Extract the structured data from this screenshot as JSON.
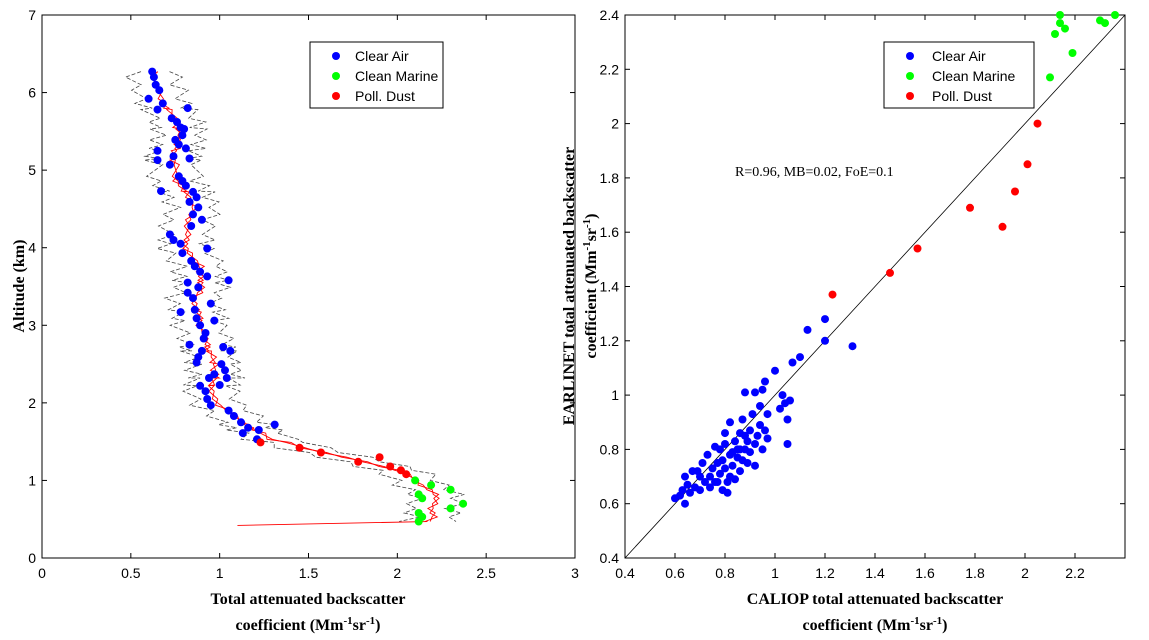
{
  "chart_data": [
    {
      "type": "scatter",
      "id": "profile",
      "xlabel_line1": "Total attenuated backscatter",
      "xlabel_line2_prefix": "coefficient (Mm",
      "ylabel": "Altitude (km)",
      "xlim": [
        0,
        3
      ],
      "ylim": [
        0,
        7
      ],
      "xticks": [
        "0",
        "0.5",
        "1",
        "1.5",
        "2",
        "2.5",
        "3"
      ],
      "yticks": [
        "0",
        "1",
        "2",
        "3",
        "4",
        "5",
        "6",
        "7"
      ],
      "grid": false,
      "legend_position": "top-right",
      "series": [
        {
          "name": "Clear Air",
          "color": "#0000ff",
          "points": [
            [
              0.62,
              6.27
            ],
            [
              0.63,
              6.2
            ],
            [
              0.64,
              6.1
            ],
            [
              0.66,
              6.03
            ],
            [
              0.6,
              5.92
            ],
            [
              0.68,
              5.86
            ],
            [
              0.65,
              5.78
            ],
            [
              0.82,
              5.8
            ],
            [
              0.73,
              5.67
            ],
            [
              0.76,
              5.62
            ],
            [
              0.78,
              5.55
            ],
            [
              0.8,
              5.53
            ],
            [
              0.79,
              5.45
            ],
            [
              0.75,
              5.39
            ],
            [
              0.77,
              5.33
            ],
            [
              0.81,
              5.28
            ],
            [
              0.65,
              5.25
            ],
            [
              0.74,
              5.18
            ],
            [
              0.65,
              5.13
            ],
            [
              0.83,
              5.15
            ],
            [
              0.72,
              5.07
            ],
            [
              0.77,
              4.92
            ],
            [
              0.79,
              4.86
            ],
            [
              0.81,
              4.8
            ],
            [
              0.85,
              4.72
            ],
            [
              0.67,
              4.73
            ],
            [
              0.87,
              4.65
            ],
            [
              0.83,
              4.59
            ],
            [
              0.88,
              4.52
            ],
            [
              0.85,
              4.43
            ],
            [
              0.9,
              4.36
            ],
            [
              0.84,
              4.28
            ],
            [
              0.72,
              4.17
            ],
            [
              0.74,
              4.1
            ],
            [
              0.78,
              4.05
            ],
            [
              0.93,
              3.99
            ],
            [
              0.79,
              3.93
            ],
            [
              0.84,
              3.83
            ],
            [
              0.86,
              3.76
            ],
            [
              0.89,
              3.69
            ],
            [
              0.93,
              3.63
            ],
            [
              1.05,
              3.58
            ],
            [
              0.82,
              3.55
            ],
            [
              0.88,
              3.49
            ],
            [
              0.82,
              3.42
            ],
            [
              0.85,
              3.35
            ],
            [
              0.95,
              3.28
            ],
            [
              0.86,
              3.2
            ],
            [
              0.78,
              3.17
            ],
            [
              0.87,
              3.09
            ],
            [
              0.97,
              3.06
            ],
            [
              0.89,
              3.0
            ],
            [
              0.92,
              2.9
            ],
            [
              0.91,
              2.83
            ],
            [
              0.83,
              2.75
            ],
            [
              1.02,
              2.72
            ],
            [
              0.9,
              2.67
            ],
            [
              1.06,
              2.67
            ],
            [
              0.88,
              2.59
            ],
            [
              0.87,
              2.52
            ],
            [
              1.01,
              2.5
            ],
            [
              1.03,
              2.42
            ],
            [
              0.97,
              2.37
            ],
            [
              1.04,
              2.32
            ],
            [
              0.94,
              2.32
            ],
            [
              0.89,
              2.22
            ],
            [
              1.0,
              2.23
            ],
            [
              0.92,
              2.15
            ],
            [
              0.93,
              2.05
            ],
            [
              0.95,
              1.97
            ],
            [
              1.05,
              1.9
            ],
            [
              1.08,
              1.83
            ],
            [
              1.12,
              1.75
            ],
            [
              1.31,
              1.72
            ],
            [
              1.16,
              1.68
            ],
            [
              1.22,
              1.65
            ],
            [
              1.13,
              1.61
            ],
            [
              1.21,
              1.53
            ]
          ]
        },
        {
          "name": "Clean Marine",
          "color": "#00ff00",
          "points": [
            [
              2.1,
              1.0
            ],
            [
              2.19,
              0.94
            ],
            [
              2.3,
              0.88
            ],
            [
              2.12,
              0.82
            ],
            [
              2.14,
              0.77
            ],
            [
              2.37,
              0.7
            ],
            [
              2.3,
              0.64
            ],
            [
              2.12,
              0.58
            ],
            [
              2.14,
              0.53
            ],
            [
              2.12,
              0.47
            ]
          ]
        },
        {
          "name": "Poll. Dust",
          "color": "#ff0000",
          "points": [
            [
              1.23,
              1.49
            ],
            [
              1.45,
              1.42
            ],
            [
              1.57,
              1.36
            ],
            [
              1.9,
              1.3
            ],
            [
              1.78,
              1.24
            ],
            [
              1.96,
              1.18
            ],
            [
              2.02,
              1.13
            ],
            [
              2.05,
              1.08
            ]
          ]
        }
      ]
    },
    {
      "type": "scatter",
      "id": "comparison",
      "xlabel_line1": "CALIOP total attenuated backscatter",
      "xlabel_line2_prefix": "coefficient (Mm",
      "ylabel_line1": "EARLINET total attenuated backscatter",
      "ylabel_line2_prefix": "coefficient (Mm",
      "xlim": [
        0.4,
        2.4
      ],
      "ylim": [
        0.4,
        2.4
      ],
      "xticks": [
        "0.4",
        "0.6",
        "0.8",
        "1",
        "1.2",
        "1.4",
        "1.6",
        "1.8",
        "2",
        "2.2"
      ],
      "yticks": [
        "0.4",
        "0.6",
        "0.8",
        "1",
        "1.2",
        "1.4",
        "1.6",
        "1.8",
        "2",
        "2.2",
        "2.4"
      ],
      "grid": false,
      "legend_position": "top-right",
      "annotation": "R=0.96, MB=0.02, FoE=0.1",
      "reference_line": [
        [
          0.4,
          0.4
        ],
        [
          2.4,
          2.4
        ]
      ],
      "series": [
        {
          "name": "Clear Air",
          "color": "#0000ff",
          "points": [
            [
              0.6,
              0.62
            ],
            [
              0.62,
              0.63
            ],
            [
              0.64,
              0.6
            ],
            [
              0.63,
              0.65
            ],
            [
              0.65,
              0.67
            ],
            [
              0.66,
              0.64
            ],
            [
              0.64,
              0.7
            ],
            [
              0.68,
              0.66
            ],
            [
              0.7,
              0.7
            ],
            [
              0.67,
              0.72
            ],
            [
              0.72,
              0.68
            ],
            [
              0.71,
              0.75
            ],
            [
              0.74,
              0.7
            ],
            [
              0.73,
              0.78
            ],
            [
              0.75,
              0.73
            ],
            [
              0.76,
              0.68
            ],
            [
              0.77,
              0.75
            ],
            [
              0.78,
              0.8
            ],
            [
              0.78,
              0.71
            ],
            [
              0.79,
              0.76
            ],
            [
              0.8,
              0.73
            ],
            [
              0.8,
              0.82
            ],
            [
              0.81,
              0.64
            ],
            [
              0.82,
              0.7
            ],
            [
              0.82,
              0.78
            ],
            [
              0.83,
              0.74
            ],
            [
              0.84,
              0.83
            ],
            [
              0.84,
              0.69
            ],
            [
              0.85,
              0.77
            ],
            [
              0.85,
              0.8
            ],
            [
              0.86,
              0.72
            ],
            [
              0.86,
              0.86
            ],
            [
              0.87,
              0.76
            ],
            [
              0.87,
              0.91
            ],
            [
              0.88,
              0.8
            ],
            [
              0.88,
              0.85
            ],
            [
              0.89,
              0.75
            ],
            [
              0.89,
              0.83
            ],
            [
              0.9,
              0.87
            ],
            [
              0.9,
              0.79
            ],
            [
              0.91,
              0.93
            ],
            [
              0.92,
              0.82
            ],
            [
              0.92,
              0.74
            ],
            [
              0.93,
              0.85
            ],
            [
              0.94,
              0.89
            ],
            [
              0.94,
              0.96
            ],
            [
              0.95,
              0.8
            ],
            [
              0.95,
              1.02
            ],
            [
              0.96,
              1.05
            ],
            [
              0.96,
              0.87
            ],
            [
              0.97,
              0.84
            ],
            [
              0.97,
              0.93
            ],
            [
              0.88,
              1.01
            ],
            [
              0.92,
              1.01
            ],
            [
              1.0,
              1.09
            ],
            [
              1.02,
              0.95
            ],
            [
              1.03,
              1.0
            ],
            [
              1.04,
              0.97
            ],
            [
              1.05,
              0.82
            ],
            [
              1.05,
              0.91
            ],
            [
              1.06,
              0.98
            ],
            [
              1.07,
              1.12
            ],
            [
              1.1,
              1.14
            ],
            [
              1.13,
              1.24
            ],
            [
              1.2,
              1.2
            ],
            [
              1.2,
              1.28
            ],
            [
              1.31,
              1.18
            ],
            [
              0.79,
              0.65
            ],
            [
              0.77,
              0.68
            ],
            [
              0.81,
              0.68
            ],
            [
              0.83,
              0.79
            ],
            [
              0.86,
              0.8
            ],
            [
              0.74,
              0.66
            ],
            [
              0.7,
              0.65
            ],
            [
              0.69,
              0.72
            ],
            [
              0.76,
              0.81
            ],
            [
              0.8,
              0.86
            ],
            [
              0.82,
              0.9
            ]
          ]
        },
        {
          "name": "Clean Marine",
          "color": "#00ff00",
          "points": [
            [
              2.14,
              2.4
            ],
            [
              2.14,
              2.37
            ],
            [
              2.16,
              2.35
            ],
            [
              2.12,
              2.33
            ],
            [
              2.3,
              2.38
            ],
            [
              2.32,
              2.37
            ],
            [
              2.36,
              2.4
            ],
            [
              2.19,
              2.26
            ],
            [
              2.1,
              2.17
            ]
          ]
        },
        {
          "name": "Poll. Dust",
          "color": "#ff0000",
          "points": [
            [
              2.05,
              2.0
            ],
            [
              2.01,
              1.85
            ],
            [
              1.96,
              1.75
            ],
            [
              1.78,
              1.69
            ],
            [
              1.91,
              1.62
            ],
            [
              1.57,
              1.54
            ],
            [
              1.46,
              1.45
            ],
            [
              1.23,
              1.37
            ]
          ]
        }
      ]
    }
  ],
  "units": {
    "m_sup": "-1",
    "sr_text": "sr",
    "sr_sup": "-1",
    "close": ")"
  }
}
